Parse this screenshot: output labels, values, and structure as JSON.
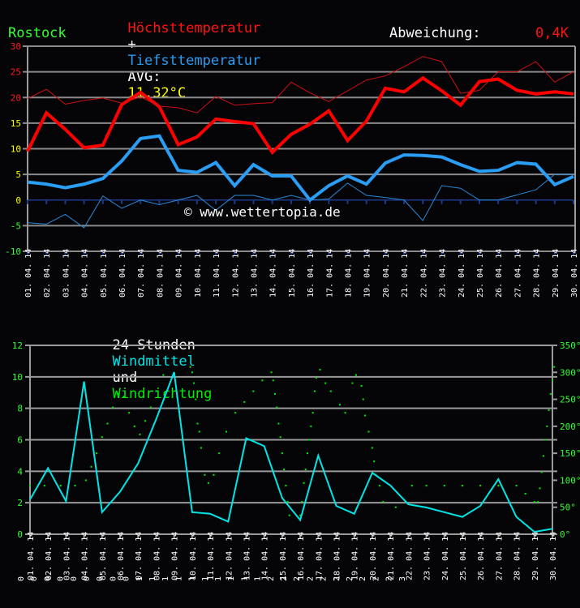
{
  "header": {
    "title_max": "Höchsttemperatur",
    "title_plus": "+",
    "title_min": "Tiefsttemperatur",
    "avg_label": "AVG:",
    "avg_value": "11,32°C",
    "location": "Rostock",
    "deviation_label": "Abweichung:",
    "deviation_value": "0,4K"
  },
  "colors": {
    "max": "#ff0000",
    "max_normal": "#cc1010",
    "min": "#2a9df4",
    "min_normal": "#2a8ad8",
    "wind_speed": "#00e5e5",
    "wind_dir": "#00ee00",
    "axis_red": "#ff1a1a",
    "axis_yellow": "#ffff00",
    "axis_green": "#33ff33"
  },
  "watermark": "© www.wettertopia.de",
  "wind_title": {
    "part1": "24 Stunden",
    "part2": "Windmittel",
    "part3": "und",
    "part4": "Windrichtung"
  },
  "bottom_digits": [
    "0",
    "0",
    "0",
    "0",
    "0",
    "0",
    "0",
    "0",
    "0",
    "1",
    "1",
    "1",
    "1",
    "1",
    "1",
    "1",
    "1",
    "1",
    "1",
    "2",
    "2",
    "2",
    "2",
    "2",
    "2",
    "2",
    "2",
    "2",
    "2",
    "3"
  ],
  "chart_data": [
    {
      "type": "line",
      "title": "Höchsttemperatur + Tiefsttemperatur AVG: 11,32°C — Rostock, Abweichung: 0,4K",
      "xlabel": "",
      "ylabel": "°C",
      "ylim": [
        -10,
        30
      ],
      "yticks": [
        30,
        25,
        20,
        15,
        10,
        5,
        0,
        -5,
        -10
      ],
      "grid": true,
      "categories": [
        "01.04.14",
        "02.04.14",
        "03.04.14",
        "04.04.14",
        "05.04.14",
        "06.04.14",
        "07.04.14",
        "08.04.14",
        "09.04.14",
        "10.04.14",
        "11.04.14",
        "12.04.14",
        "13.04.14",
        "14.04.14",
        "15.04.14",
        "16.04.14",
        "17.04.14",
        "18.04.14",
        "19.04.14",
        "20.04.14",
        "21.04.14",
        "22.04.14",
        "23.04.14",
        "24.04.14",
        "25.04.14",
        "26.04.14",
        "27.04.14",
        "28.04.14",
        "29.04.14",
        "30.04.14"
      ],
      "series": [
        {
          "name": "Höchsttemperatur",
          "style": "thick",
          "color": "#ff0000",
          "values": [
            9.5,
            17,
            13.8,
            10.2,
            10.7,
            18.6,
            21,
            18.2,
            10.8,
            12.3,
            15.8,
            15.3,
            14.9,
            9.3,
            12.8,
            14.8,
            17.4,
            11.6,
            15.4,
            21.8,
            21.1,
            23.8,
            21.3,
            18.5,
            23.1,
            23.6,
            21.4,
            20.7,
            21.1,
            20.7
          ]
        },
        {
          "name": "Höchsttemperatur (Normal)",
          "style": "thin",
          "color": "#cc1010",
          "values": [
            19.8,
            21.6,
            18.7,
            19.4,
            19.9,
            18.9,
            20.1,
            18.3,
            18,
            17,
            20.2,
            18.5,
            18.8,
            19,
            23,
            20.9,
            19.2,
            21.3,
            23.4,
            24.2,
            26,
            28,
            27,
            20.8,
            21.4,
            25,
            25,
            27,
            23,
            25
          ]
        },
        {
          "name": "Tiefsttemperatur",
          "style": "thick",
          "color": "#2a9df4",
          "values": [
            3.5,
            3.1,
            2.4,
            3.1,
            4.2,
            7.6,
            12,
            12.5,
            5.8,
            5.4,
            7.3,
            2.8,
            6.9,
            4.7,
            4.7,
            0,
            2.8,
            4.7,
            3.1,
            7.2,
            8.8,
            8.7,
            8.4,
            6.9,
            5.6,
            5.8,
            7.3,
            7.0,
            3.0,
            4.6
          ]
        },
        {
          "name": "Tiefsttemperatur (Normal)",
          "style": "thin",
          "color": "#2a8ad8",
          "values": [
            -4.4,
            -4.7,
            -2.8,
            -5.4,
            0.8,
            -1.6,
            0,
            -0.9,
            0,
            0.9,
            -2,
            0.9,
            0.9,
            0,
            0.9,
            0,
            0.2,
            3.3,
            0.9,
            0.5,
            0,
            -4.0,
            2.8,
            2.3,
            0,
            0,
            1,
            2,
            5,
            5
          ]
        }
      ]
    },
    {
      "type": "line",
      "title": "24 Stunden Windmittel und Windrichtung",
      "ylim": [
        0,
        12
      ],
      "yticks": [
        12,
        10,
        8,
        6,
        4,
        2,
        0
      ],
      "y2lim": [
        0,
        350
      ],
      "y2ticks": [
        "350°",
        "300°",
        "250°",
        "200°",
        "150°",
        "100°",
        "50°",
        "0°"
      ],
      "grid": true,
      "categories": [
        "01.04.14",
        "02.04.14",
        "03.04.14",
        "04.04.14",
        "05.04.14",
        "06.04.14",
        "07.04.14",
        "08.04.14",
        "09.04.14",
        "10.04.14",
        "11.04.14",
        "12.04.14",
        "13.04.14",
        "14.04.14",
        "15.04.14",
        "16.04.14",
        "17.04.14",
        "18.04.14",
        "19.04.14",
        "20.04.14",
        "21.04.14",
        "22.04.14",
        "23.04.14",
        "24.04.14",
        "25.04.14",
        "26.04.14",
        "27.04.14",
        "28.04.14",
        "29.04.14",
        "30.04.14"
      ],
      "series": [
        {
          "name": "Windmittel",
          "color": "#00e5e5",
          "axis": "left",
          "values": [
            2.2,
            4.2,
            2.1,
            9.7,
            1.4,
            2.7,
            4.5,
            7.3,
            10.3,
            1.4,
            1.3,
            0.8,
            6.1,
            5.6,
            2.3,
            0.9,
            5.0,
            1.8,
            1.3,
            3.9,
            3.1,
            1.9,
            1.7,
            1.4,
            1.1,
            1.8,
            3.5,
            1.1,
            0.15,
            0.35
          ]
        },
        {
          "name": "Windrichtung",
          "color": "#00ee00",
          "axis": "right",
          "type": "scatter",
          "points": [
            [
              0,
              90
            ],
            [
              0.8,
              90
            ],
            [
              1.7,
              90
            ],
            [
              2.5,
              90
            ],
            [
              3.1,
              100
            ],
            [
              3.4,
              125
            ],
            [
              3.7,
              150
            ],
            [
              4.0,
              180
            ],
            [
              4.3,
              205
            ],
            [
              4.6,
              235
            ],
            [
              4.9,
              260
            ],
            [
              5.2,
              255
            ],
            [
              5.5,
              225
            ],
            [
              5.8,
              200
            ],
            [
              6.1,
              185
            ],
            [
              6.4,
              210
            ],
            [
              6.7,
              235
            ],
            [
              7.0,
              265
            ],
            [
              7.4,
              295
            ],
            [
              8.9,
              310
            ],
            [
              9.0,
              300
            ],
            [
              9.1,
              280
            ],
            [
              9.2,
              250
            ],
            [
              9.3,
              205
            ],
            [
              9.4,
              190
            ],
            [
              9.5,
              160
            ],
            [
              9.7,
              110
            ],
            [
              9.9,
              95
            ],
            [
              10.2,
              110
            ],
            [
              10.5,
              150
            ],
            [
              10.9,
              190
            ],
            [
              11.4,
              225
            ],
            [
              11.9,
              245
            ],
            [
              12.4,
              265
            ],
            [
              12.9,
              285
            ],
            [
              13.4,
              300
            ],
            [
              13.5,
              285
            ],
            [
              13.6,
              260
            ],
            [
              13.7,
              235
            ],
            [
              13.8,
              205
            ],
            [
              13.9,
              180
            ],
            [
              14.0,
              150
            ],
            [
              14.1,
              120
            ],
            [
              14.2,
              90
            ],
            [
              14.3,
              60
            ],
            [
              14.4,
              35
            ],
            [
              15.0,
              35
            ],
            [
              15.1,
              60
            ],
            [
              15.2,
              95
            ],
            [
              15.3,
              120
            ],
            [
              15.4,
              150
            ],
            [
              15.5,
              175
            ],
            [
              15.6,
              200
            ],
            [
              15.7,
              225
            ],
            [
              15.8,
              265
            ],
            [
              15.9,
              290
            ],
            [
              16.1,
              305
            ],
            [
              16.4,
              280
            ],
            [
              16.7,
              265
            ],
            [
              17.2,
              240
            ],
            [
              17.5,
              225
            ],
            [
              17.9,
              280
            ],
            [
              18.1,
              295
            ],
            [
              18.4,
              275
            ],
            [
              18.5,
              250
            ],
            [
              18.6,
              220
            ],
            [
              18.8,
              190
            ],
            [
              19.0,
              160
            ],
            [
              19.1,
              135
            ],
            [
              19.2,
              110
            ],
            [
              19.4,
              90
            ],
            [
              19.6,
              60
            ],
            [
              20.3,
              50
            ],
            [
              21.2,
              90
            ],
            [
              22.0,
              90
            ],
            [
              23.0,
              90
            ],
            [
              24.0,
              90
            ],
            [
              25.0,
              90
            ],
            [
              26.0,
              90
            ],
            [
              27.0,
              90
            ],
            [
              27.5,
              75
            ],
            [
              28.0,
              60
            ],
            [
              28.2,
              60
            ],
            [
              28.3,
              85
            ],
            [
              28.4,
              115
            ],
            [
              28.5,
              145
            ],
            [
              28.6,
              175
            ],
            [
              28.7,
              200
            ],
            [
              28.8,
              230
            ],
            [
              28.9,
              260
            ],
            [
              29.0,
              285
            ],
            [
              29.1,
              310
            ]
          ]
        }
      ]
    }
  ]
}
